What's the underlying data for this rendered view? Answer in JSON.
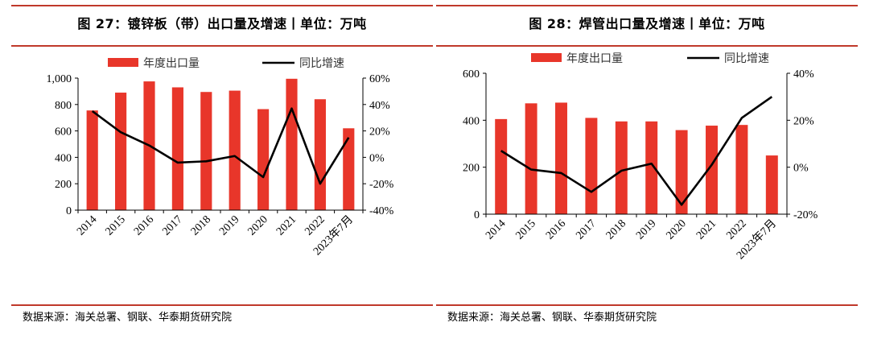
{
  "panels": [
    {
      "title": "图  27：镀锌板（带）出口量及增速丨单位：万吨",
      "source": "数据来源：海关总署、钢联、华泰期货研究院",
      "chart_data": {
        "type": "bar+line",
        "categories": [
          "2014",
          "2015",
          "2016",
          "2017",
          "2018",
          "2019",
          "2020",
          "2021",
          "2022",
          "2023年7月"
        ],
        "series": [
          {
            "name": "年度出口量",
            "type": "bar",
            "axis": "left",
            "values": [
              755,
              890,
              975,
              930,
              895,
              905,
              765,
              995,
              840,
              620
            ]
          },
          {
            "name": "同比增速",
            "type": "line",
            "axis": "right",
            "values": [
              35,
              19,
              9,
              -4,
              -3,
              1,
              -15,
              37,
              -20,
              15
            ]
          }
        ],
        "left_axis": {
          "min": 0,
          "max": 1000,
          "ticks": [
            0,
            200,
            400,
            600,
            800,
            1000
          ],
          "tick_labels": [
            "0",
            "200",
            "400",
            "600",
            "800",
            "1,000"
          ]
        },
        "right_axis": {
          "min": -40,
          "max": 60,
          "ticks": [
            -40,
            -20,
            0,
            20,
            40,
            60
          ],
          "tick_labels": [
            "-40%",
            "-20%",
            "0%",
            "20%",
            "40%",
            "60%"
          ]
        },
        "bar_color": "#e8362a",
        "line_color": "#000000",
        "legend_position": "top"
      }
    },
    {
      "title": "图  28：焊管出口量及增速丨单位：万吨",
      "source": "数据来源：海关总署、钢联、华泰期货研究院",
      "chart_data": {
        "type": "bar+line",
        "categories": [
          "2014",
          "2015",
          "2016",
          "2017",
          "2018",
          "2019",
          "2020",
          "2021",
          "2022",
          "2023年7月"
        ],
        "series": [
          {
            "name": "年度出口量",
            "type": "bar",
            "axis": "left",
            "values": [
              405,
              472,
              475,
              410,
              395,
              395,
              358,
              377,
              380,
              250
            ]
          },
          {
            "name": "同比增速",
            "type": "line",
            "axis": "right",
            "values": [
              7,
              -1,
              -2.5,
              -10.5,
              -1.5,
              1.5,
              -16,
              1,
              21,
              30
            ]
          }
        ],
        "left_axis": {
          "min": 0,
          "max": 600,
          "ticks": [
            0,
            200,
            400,
            600
          ],
          "tick_labels": [
            "0",
            "200",
            "400",
            "600"
          ]
        },
        "right_axis": {
          "min": -20,
          "max": 40,
          "ticks": [
            -20,
            0,
            20,
            40
          ],
          "tick_labels": [
            "-20%",
            "0%",
            "20%",
            "40%"
          ]
        },
        "bar_color": "#e8362a",
        "line_color": "#000000",
        "legend_position": "top"
      }
    }
  ]
}
